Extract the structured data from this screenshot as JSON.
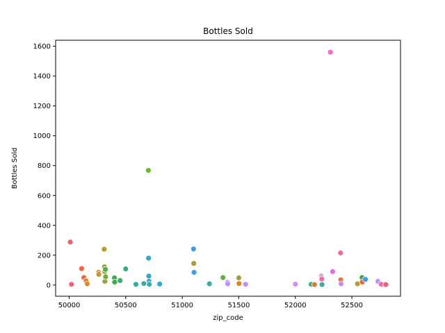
{
  "chart_data": {
    "type": "scatter",
    "title": "Bottles Sold",
    "xlabel": "zip_code",
    "ylabel": "Bottles Sold",
    "xlim": [
      49880,
      52930
    ],
    "ylim": [
      -75,
      1640
    ],
    "x_ticks": [
      50000,
      50500,
      51000,
      51500,
      52000,
      52500
    ],
    "y_ticks": [
      0,
      200,
      400,
      600,
      800,
      1000,
      1200,
      1400,
      1600
    ],
    "grid": false,
    "legend": "none",
    "points": [
      {
        "x": 50010,
        "y": 288,
        "color": "#f0606f"
      },
      {
        "x": 50020,
        "y": 5,
        "color": "#f0606f"
      },
      {
        "x": 50110,
        "y": 110,
        "color": "#ef6145"
      },
      {
        "x": 50130,
        "y": 50,
        "color": "#ee6830"
      },
      {
        "x": 50150,
        "y": 28,
        "color": "#e07a36"
      },
      {
        "x": 50160,
        "y": 8,
        "color": "#d98a2c"
      },
      {
        "x": 50260,
        "y": 85,
        "color": "#c79432"
      },
      {
        "x": 50262,
        "y": 72,
        "color": "#c99332"
      },
      {
        "x": 50310,
        "y": 240,
        "color": "#b39b2e"
      },
      {
        "x": 50312,
        "y": 122,
        "color": "#ae9c33"
      },
      {
        "x": 50314,
        "y": 90,
        "color": "#a99e33"
      },
      {
        "x": 50316,
        "y": 25,
        "color": "#a59f34"
      },
      {
        "x": 50320,
        "y": 105,
        "color": "#56ad3a"
      },
      {
        "x": 50322,
        "y": 55,
        "color": "#66b03a"
      },
      {
        "x": 50400,
        "y": 48,
        "color": "#3cac4a"
      },
      {
        "x": 50402,
        "y": 20,
        "color": "#3aad55"
      },
      {
        "x": 50450,
        "y": 30,
        "color": "#3aae6e"
      },
      {
        "x": 50500,
        "y": 108,
        "color": "#39ae85"
      },
      {
        "x": 50590,
        "y": 5,
        "color": "#36ae9a"
      },
      {
        "x": 50660,
        "y": 10,
        "color": "#36ada5"
      },
      {
        "x": 50700,
        "y": 768,
        "color": "#6ab83a"
      },
      {
        "x": 50702,
        "y": 180,
        "color": "#34a8c0"
      },
      {
        "x": 50704,
        "y": 60,
        "color": "#36a8c3"
      },
      {
        "x": 50706,
        "y": 25,
        "color": "#36a9c7"
      },
      {
        "x": 50708,
        "y": 5,
        "color": "#37aab8"
      },
      {
        "x": 50800,
        "y": 7,
        "color": "#39a7d0"
      },
      {
        "x": 51100,
        "y": 242,
        "color": "#3a9ee2"
      },
      {
        "x": 51102,
        "y": 145,
        "color": "#a99e33"
      },
      {
        "x": 51104,
        "y": 85,
        "color": "#3aa1e0"
      },
      {
        "x": 51240,
        "y": 8,
        "color": "#38ad9e"
      },
      {
        "x": 51360,
        "y": 50,
        "color": "#66b03a"
      },
      {
        "x": 51400,
        "y": 18,
        "color": "#a59fe8"
      },
      {
        "x": 51402,
        "y": 8,
        "color": "#b996f0"
      },
      {
        "x": 51500,
        "y": 48,
        "color": "#a99e33"
      },
      {
        "x": 51502,
        "y": 10,
        "color": "#d88a2c"
      },
      {
        "x": 51560,
        "y": 5,
        "color": "#c58ff2"
      },
      {
        "x": 52000,
        "y": 6,
        "color": "#d98bf0"
      },
      {
        "x": 52140,
        "y": 5,
        "color": "#39ae85"
      },
      {
        "x": 52170,
        "y": 3,
        "color": "#e07a36"
      },
      {
        "x": 52230,
        "y": 60,
        "color": "#b39b2e"
      },
      {
        "x": 52232,
        "y": 50,
        "color": "#ea6cd9"
      },
      {
        "x": 52234,
        "y": 40,
        "color": "#f06ab0"
      },
      {
        "x": 52236,
        "y": 3,
        "color": "#36ae9a"
      },
      {
        "x": 52310,
        "y": 1560,
        "color": "#ee6acd"
      },
      {
        "x": 52330,
        "y": 90,
        "color": "#e869e8"
      },
      {
        "x": 52400,
        "y": 215,
        "color": "#f06a9e"
      },
      {
        "x": 52402,
        "y": 35,
        "color": "#e07a36"
      },
      {
        "x": 52404,
        "y": 8,
        "color": "#c58ff2"
      },
      {
        "x": 52550,
        "y": 8,
        "color": "#b39b2e"
      },
      {
        "x": 52590,
        "y": 50,
        "color": "#3cac4a"
      },
      {
        "x": 52592,
        "y": 20,
        "color": "#ef6145"
      },
      {
        "x": 52620,
        "y": 38,
        "color": "#3a9ee2"
      },
      {
        "x": 52730,
        "y": 25,
        "color": "#b996f0"
      },
      {
        "x": 52760,
        "y": 5,
        "color": "#f06ab0"
      },
      {
        "x": 52800,
        "y": 3,
        "color": "#f0606f"
      }
    ]
  }
}
